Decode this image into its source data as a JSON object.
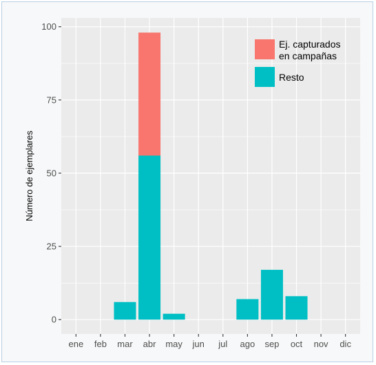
{
  "chart_data": {
    "type": "bar",
    "stacked": true,
    "categories": [
      "ene",
      "feb",
      "mar",
      "abr",
      "may",
      "jun",
      "jul",
      "ago",
      "sep",
      "oct",
      "nov",
      "dic"
    ],
    "series": [
      {
        "name": "Resto",
        "color": "#00bfc4",
        "values": [
          0,
          0,
          6,
          56,
          2,
          0,
          0,
          7,
          17,
          8,
          0,
          0
        ]
      },
      {
        "name": "Ej. capturados en campañas",
        "color": "#f8766d",
        "values": [
          0,
          0,
          0,
          42,
          0,
          0,
          0,
          0,
          0,
          0,
          0,
          0
        ]
      }
    ],
    "legend_labels": {
      "campaign_line1": "Ej. capturados",
      "campaign_line2": "en campañas",
      "rest": "Resto"
    },
    "ylabel": "Número de ejemplares",
    "xlabel": "",
    "yticks": [
      0,
      25,
      50,
      75,
      100
    ],
    "ylim": [
      -4.9,
      103
    ],
    "grid": true,
    "legend_position": "top-right"
  },
  "colors": {
    "panel_background": "#ebebeb",
    "grid": "#ffffff",
    "campaign": "#f8766d",
    "rest": "#00bfc4"
  }
}
